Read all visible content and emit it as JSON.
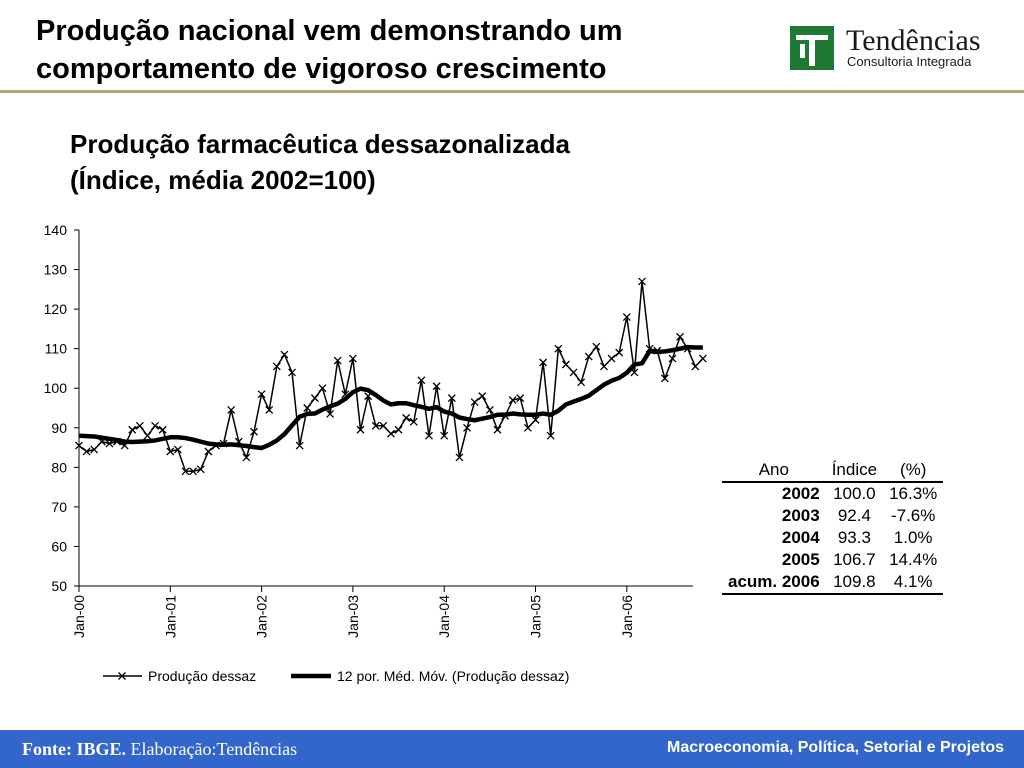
{
  "slide": {
    "title_line1": "Produção nacional vem demonstrando um",
    "title_line2": "comportamento de vigoroso crescimento",
    "logo_name": "Tendências",
    "logo_sub": "Consultoria Integrada",
    "rule_color": "#b5a57a"
  },
  "chart_title": {
    "line1": "Produção farmacêutica dessazonalizada",
    "line2": "(Índice, média 2002=100)"
  },
  "chart_data": {
    "type": "line",
    "ylim": [
      50,
      140
    ],
    "yticks": [
      50,
      60,
      70,
      80,
      90,
      100,
      110,
      120,
      130,
      140
    ],
    "xticks": [
      "Jan-00",
      "Jan-01",
      "Jan-02",
      "Jan-03",
      "Jan-04",
      "Jan-05",
      "Jan-06"
    ],
    "x_start": "Jan-00",
    "legend_position": "bottom",
    "grid": false,
    "series": [
      {
        "name": "Produção dessaz",
        "marker": "x",
        "color": "#000000",
        "values": [
          85.5,
          84,
          84.5,
          86.5,
          86,
          86.5,
          85.5,
          89.5,
          90.5,
          88,
          90.5,
          89.5,
          84,
          84.5,
          79,
          79,
          79.5,
          84,
          85.5,
          86,
          94.5,
          86.5,
          82.5,
          89,
          98.5,
          94.5,
          105.5,
          108.5,
          104,
          85.5,
          95,
          97.5,
          100,
          93.5,
          107,
          98.5,
          107.5,
          89.5,
          98,
          90.5,
          90.5,
          88.5,
          89.5,
          92.5,
          91.5,
          102,
          88,
          100.5,
          88,
          97.5,
          82.5,
          90,
          96.5,
          98,
          94.5,
          89.5,
          93,
          97,
          97.5,
          90,
          92,
          106.5,
          88,
          110,
          106,
          104,
          101.5,
          108,
          110.5,
          105.5,
          107.5,
          109,
          118,
          104,
          127,
          110,
          109.5,
          102.5,
          107.5,
          113,
          110,
          105.5,
          107.5
        ]
      },
      {
        "name": "12 por. Méd. Móv. (Produção dessaz)",
        "marker": "none",
        "color": "#000000",
        "values": [
          88,
          87.9,
          87.8,
          87.5,
          87.2,
          86.9,
          86.5,
          86.4,
          86.5,
          86.6,
          86.8,
          87.2,
          87.6,
          87.6,
          87.4,
          87,
          86.5,
          86,
          85.8,
          85.7,
          85.8,
          85.6,
          85.4,
          85.1,
          84.9,
          85.7,
          86.8,
          88.4,
          90.6,
          92.8,
          93.5,
          93.6,
          94.6,
          95.4,
          96.1,
          97.3,
          99,
          99.9,
          99.5,
          98.3,
          96.9,
          95.9,
          96.2,
          96.2,
          95.7,
          95.3,
          94.8,
          95.2,
          94.1,
          93.6,
          92.6,
          92.2,
          91.9,
          92.3,
          92.7,
          93.3,
          93.3,
          93.6,
          93.4,
          93.3,
          93.3,
          93.6,
          93.3,
          94.3,
          95.9,
          96.6,
          97.3,
          98.1,
          99.5,
          100.9,
          101.9,
          102.6,
          103.9,
          106,
          106.3,
          109.4,
          109.2,
          109.3,
          109.6,
          110,
          110.4,
          110.3,
          110.3
        ]
      }
    ]
  },
  "table": {
    "headers": [
      "Ano",
      "Índice",
      "(%)"
    ],
    "rows": [
      [
        "2002",
        "100.0",
        "16.3%"
      ],
      [
        "2003",
        "92.4",
        "-7.6%"
      ],
      [
        "2004",
        "93.3",
        "1.0%"
      ],
      [
        "2005",
        "106.7",
        "14.4%"
      ],
      [
        "acum. 2006",
        "109.8",
        "4.1%"
      ]
    ]
  },
  "footer": {
    "source_bold": "Fonte: IBGE.",
    "source_rest": " Elaboração:Tendências",
    "tagline": "Macroeconomia, Política, Setorial e Projetos",
    "bar_color": "#3366cc"
  }
}
